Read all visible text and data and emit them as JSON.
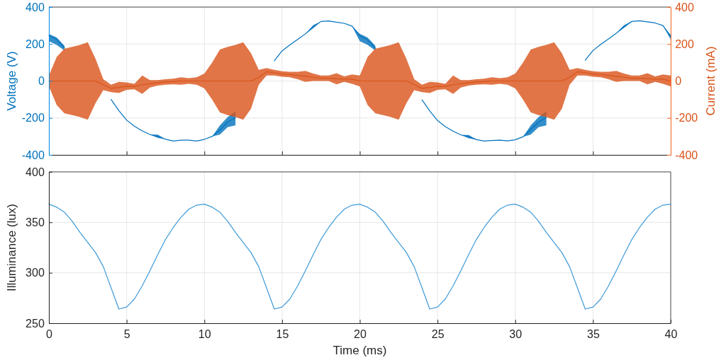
{
  "chart_data": [
    {
      "type": "line",
      "ylabel": "Voltage (V)",
      "y2label": "Current (mA)",
      "x": [
        0,
        0.5,
        1,
        1.5,
        2,
        2.5,
        3,
        3.5,
        4,
        4.5,
        5,
        5.5,
        6,
        6.5,
        7,
        7.5,
        8,
        8.5,
        9,
        9.5,
        10,
        10.5,
        11,
        11.5,
        12,
        12.5,
        13,
        13.5,
        14,
        14.5,
        15,
        15.5,
        16,
        16.5,
        17,
        17.5,
        18,
        18.5,
        19,
        19.5,
        20,
        20.5,
        21,
        21.5,
        22,
        22.5,
        23,
        23.5,
        24,
        24.5,
        25,
        25.5,
        26,
        26.5,
        27,
        27.5,
        28,
        28.5,
        29,
        29.5,
        30,
        30.5,
        31,
        31.5,
        32,
        32.5,
        33,
        33.5,
        34,
        34.5,
        35,
        35.5,
        36,
        36.5,
        37,
        37.5,
        38,
        38.5,
        39,
        39.5,
        40
      ],
      "xlim": [
        0,
        40
      ],
      "xticks": [
        0,
        5,
        10,
        15,
        20,
        25,
        30,
        35,
        40
      ],
      "ylim": [
        -400,
        400
      ],
      "yticks": [
        -400,
        -200,
        0,
        200,
        400
      ],
      "y2lim": [
        -400,
        400
      ],
      "y2ticks": [
        -400,
        -200,
        0,
        200,
        400
      ],
      "tick_labels": "y",
      "grid": true,
      "series": [
        {
          "color": "#0072bd",
          "values": [
            245,
            225,
            180,
            null,
            null,
            null,
            null,
            null,
            -100,
            -160,
            -212,
            -245,
            -270,
            -290,
            -300,
            -315,
            -325,
            -320,
            -320,
            -325,
            -316,
            -300,
            -265,
            -222,
            -200,
            null,
            null,
            null,
            null,
            110,
            163,
            195,
            225,
            255,
            293,
            322,
            325,
            318,
            312,
            297,
            245,
            222,
            178,
            null,
            null,
            null,
            null,
            null,
            -102,
            -162,
            -214,
            -247,
            -272,
            -292,
            -302,
            -317,
            -325,
            -322,
            -320,
            -324,
            -318,
            -302,
            -262,
            -222,
            -198,
            null,
            null,
            null,
            null,
            112,
            165,
            198,
            228,
            258,
            295,
            322,
            326,
            320,
            314,
            300,
            240
          ],
          "lower": [
            215,
            195,
            165,
            null,
            null,
            null,
            null,
            null,
            -100,
            -160,
            -212,
            -245,
            -270,
            -290,
            -308,
            -315,
            -325,
            -320,
            -320,
            -325,
            -316,
            -300,
            -290,
            -250,
            -240,
            null,
            null,
            null,
            null,
            110,
            163,
            195,
            225,
            255,
            285,
            322,
            325,
            318,
            312,
            297,
            215,
            195,
            165,
            null,
            null,
            null,
            null,
            null,
            -102,
            -162,
            -214,
            -247,
            -272,
            -292,
            -310,
            -317,
            -325,
            -322,
            -320,
            -324,
            -318,
            -302,
            -290,
            -250,
            -240,
            null,
            null,
            null,
            null,
            112,
            165,
            198,
            228,
            258,
            287,
            322,
            326,
            320,
            314,
            300,
            225
          ],
          "upper": [
            255,
            235,
            190,
            null,
            null,
            null,
            null,
            null,
            -100,
            -160,
            -212,
            -245,
            -270,
            -290,
            -290,
            -315,
            -325,
            -320,
            -320,
            -325,
            -316,
            -300,
            -240,
            -195,
            -165,
            null,
            null,
            null,
            null,
            110,
            163,
            195,
            225,
            255,
            302,
            322,
            325,
            318,
            312,
            297,
            255,
            235,
            190,
            null,
            null,
            null,
            null,
            null,
            -102,
            -162,
            -214,
            -247,
            -272,
            -292,
            -292,
            -317,
            -325,
            -322,
            -320,
            -324,
            -318,
            -302,
            -240,
            -195,
            -165,
            null,
            null,
            null,
            null,
            112,
            165,
            198,
            228,
            258,
            302,
            322,
            326,
            320,
            314,
            300,
            250
          ]
        },
        {
          "color": "#d95319",
          "axis": "y2",
          "values": [
            0,
            0,
            0,
            0,
            0,
            0,
            0,
            -20,
            -40,
            -35,
            -28,
            -30,
            -20,
            -15,
            -10,
            -5,
            -3,
            0,
            0,
            0,
            0,
            0,
            0,
            0,
            0,
            0,
            0,
            20,
            50,
            45,
            38,
            35,
            30,
            25,
            20,
            15,
            15,
            12,
            10,
            10,
            0,
            0,
            0,
            0,
            0,
            0,
            0,
            -20,
            -40,
            -35,
            -28,
            -30,
            -20,
            -15,
            -10,
            -5,
            -3,
            0,
            0,
            0,
            0,
            0,
            0,
            0,
            0,
            0,
            0,
            20,
            50,
            45,
            38,
            35,
            30,
            25,
            20,
            15,
            15,
            12,
            10,
            10,
            0
          ],
          "lower": [
            -30,
            -130,
            -175,
            -185,
            -195,
            -210,
            -120,
            -50,
            -60,
            -65,
            -48,
            -45,
            -70,
            -35,
            -25,
            -20,
            -18,
            -20,
            -15,
            -20,
            -40,
            -100,
            -170,
            -185,
            -195,
            -210,
            -150,
            -20,
            30,
            30,
            23,
            20,
            10,
            -5,
            0,
            0,
            0,
            -18,
            -5,
            -15,
            -30,
            -130,
            -175,
            -185,
            -195,
            -210,
            -120,
            -50,
            -60,
            -65,
            -48,
            -45,
            -70,
            -35,
            -25,
            -20,
            -18,
            -20,
            -15,
            -20,
            -40,
            -100,
            -170,
            -185,
            -195,
            -210,
            -150,
            -20,
            30,
            30,
            23,
            20,
            10,
            -5,
            0,
            0,
            0,
            -18,
            -5,
            -15,
            -30
          ],
          "upper": [
            30,
            130,
            175,
            185,
            195,
            210,
            120,
            10,
            -20,
            -5,
            -8,
            -15,
            30,
            5,
            5,
            10,
            12,
            20,
            15,
            20,
            40,
            100,
            170,
            185,
            195,
            210,
            150,
            60,
            70,
            60,
            53,
            50,
            50,
            55,
            40,
            30,
            30,
            42,
            25,
            35,
            30,
            130,
            175,
            185,
            195,
            210,
            120,
            10,
            -20,
            -5,
            -8,
            -15,
            30,
            5,
            5,
            10,
            12,
            20,
            15,
            20,
            40,
            100,
            170,
            185,
            195,
            210,
            150,
            60,
            70,
            60,
            53,
            50,
            50,
            55,
            40,
            30,
            30,
            42,
            25,
            35,
            30
          ]
        }
      ]
    },
    {
      "type": "line",
      "xlabel": "Time (ms)",
      "ylabel": "Illuminance (lux)",
      "x": [
        0,
        0.5,
        1,
        1.5,
        2,
        2.5,
        3,
        3.5,
        4,
        4.5,
        5,
        5.5,
        6,
        6.5,
        7,
        7.5,
        8,
        8.5,
        9,
        9.5,
        10,
        10.5,
        11,
        11.5,
        12,
        12.5,
        13,
        13.5,
        14,
        14.5,
        15,
        15.5,
        16,
        16.5,
        17,
        17.5,
        18,
        18.5,
        19,
        19.5,
        20,
        20.5,
        21,
        21.5,
        22,
        22.5,
        23,
        23.5,
        24,
        24.5,
        25,
        25.5,
        26,
        26.5,
        27,
        27.5,
        28,
        28.5,
        29,
        29.5,
        30,
        30.5,
        31,
        31.5,
        32,
        32.5,
        33,
        33.5,
        34,
        34.5,
        35,
        35.5,
        36,
        36.5,
        37,
        37.5,
        38,
        38.5,
        39,
        39.5,
        40
      ],
      "xlim": [
        0,
        40
      ],
      "xticks": [
        0,
        5,
        10,
        15,
        20,
        25,
        30,
        35,
        40
      ],
      "ylim": [
        250,
        400
      ],
      "yticks": [
        250,
        300,
        350,
        400
      ],
      "grid": true,
      "series": [
        {
          "color": "#3d9ad8",
          "values": [
            368,
            365,
            360,
            351,
            340,
            330,
            320,
            306,
            285,
            264,
            266,
            274,
            287,
            302,
            318,
            333,
            345,
            355,
            363,
            367,
            368,
            365,
            360,
            351,
            340,
            330,
            320,
            306,
            285,
            264,
            266,
            274,
            287,
            302,
            318,
            333,
            345,
            355,
            363,
            367,
            368,
            365,
            360,
            351,
            340,
            330,
            320,
            306,
            285,
            264,
            266,
            274,
            287,
            302,
            318,
            333,
            345,
            355,
            363,
            367,
            368,
            365,
            360,
            351,
            340,
            330,
            320,
            306,
            285,
            264,
            266,
            274,
            287,
            302,
            318,
            333,
            345,
            355,
            363,
            367,
            368
          ]
        }
      ]
    }
  ]
}
